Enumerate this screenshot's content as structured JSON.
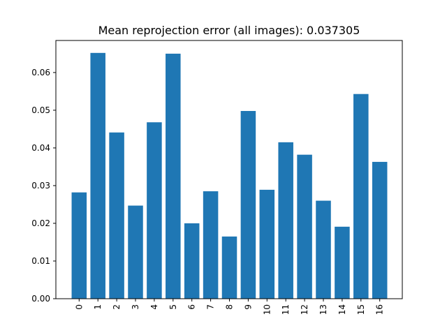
{
  "chart_data": {
    "type": "bar",
    "title": "Mean reprojection error (all images): 0.037305",
    "xlabel": "",
    "ylabel": "",
    "categories": [
      "0",
      "1",
      "2",
      "3",
      "4",
      "5",
      "6",
      "7",
      "8",
      "9",
      "10",
      "11",
      "12",
      "13",
      "14",
      "15",
      "16"
    ],
    "values": [
      0.0282,
      0.0652,
      0.0441,
      0.0247,
      0.0468,
      0.065,
      0.02,
      0.0285,
      0.0165,
      0.0498,
      0.0289,
      0.0415,
      0.0382,
      0.026,
      0.0191,
      0.0543,
      0.0363
    ],
    "ylim": [
      0,
      0.0685
    ],
    "yticks": [
      "0.00",
      "0.01",
      "0.02",
      "0.03",
      "0.04",
      "0.05",
      "0.06"
    ],
    "grid": false,
    "bar_color": "#1f77b4"
  }
}
